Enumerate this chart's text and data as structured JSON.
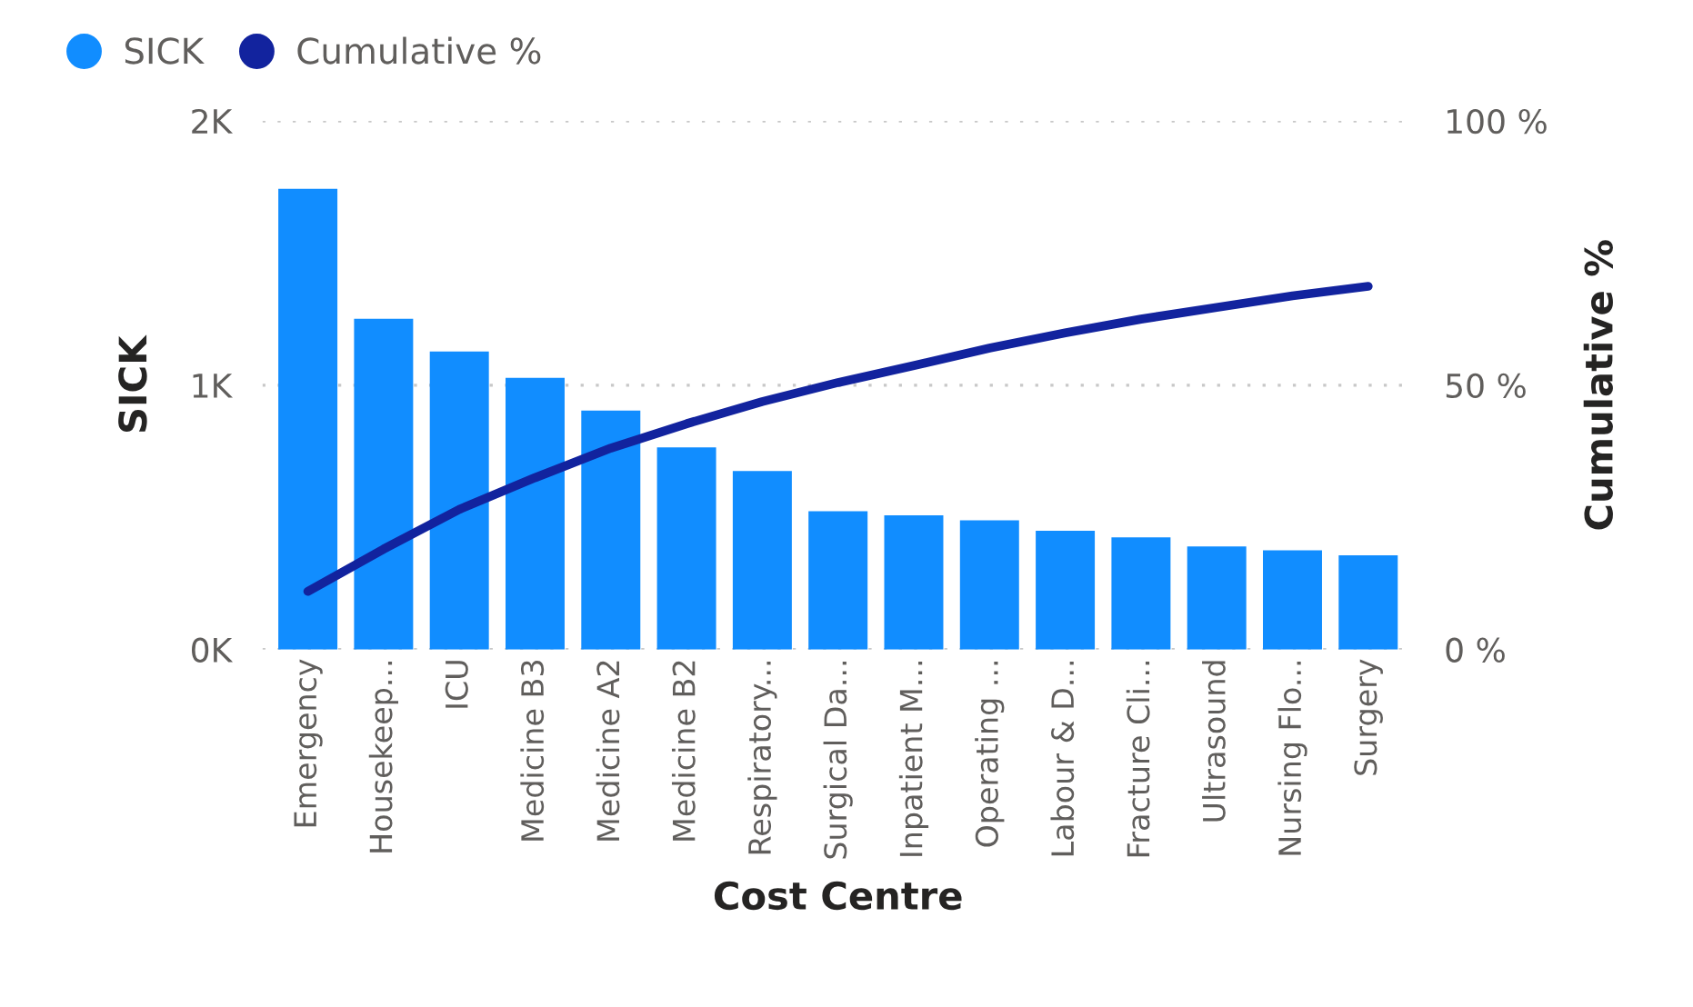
{
  "chart_data": {
    "type": "bar",
    "xlabel": "Cost Centre",
    "ylabel": "SICK",
    "y2label": "Cumulative %",
    "categories": [
      "Emergency",
      "Housekeep...",
      "ICU",
      "Medicine B3",
      "Medicine A2",
      "Medicine B2",
      "Respiratory...",
      "Surgical Da...",
      "Inpatient M...",
      "Operating ...",
      "Labour & D...",
      "Fracture Cli...",
      "Ultrasound",
      "Nursing Flo...",
      "Surgery"
    ],
    "series": [
      {
        "name": "SICK",
        "color": "#118dff",
        "values": [
          1743,
          1251,
          1127,
          1028,
          904,
          765,
          675,
          523,
          508,
          489,
          449,
          424,
          390,
          375,
          356
        ]
      },
      {
        "name": "Cumulative %",
        "type": "line",
        "axis": "y2",
        "color": "#12239e",
        "values": [
          11.0,
          19.0,
          26.5,
          32.5,
          38.1,
          42.7,
          46.9,
          50.5,
          53.7,
          57.0,
          59.9,
          62.5,
          64.7,
          66.9,
          68.7
        ]
      }
    ],
    "ylim": [
      0,
      2000
    ],
    "yticks": [
      {
        "value": 0,
        "label": "0K"
      },
      {
        "value": 1000,
        "label": "1K"
      },
      {
        "value": 2000,
        "label": "2K"
      }
    ],
    "y2lim": [
      0,
      100
    ],
    "y2ticks": [
      {
        "value": 0,
        "label": "0 %"
      },
      {
        "value": 50,
        "label": "50 %"
      },
      {
        "value": 100,
        "label": "100 %"
      }
    ],
    "grid": "y",
    "legend": "top left",
    "marker": "none",
    "line_style": "solid"
  }
}
